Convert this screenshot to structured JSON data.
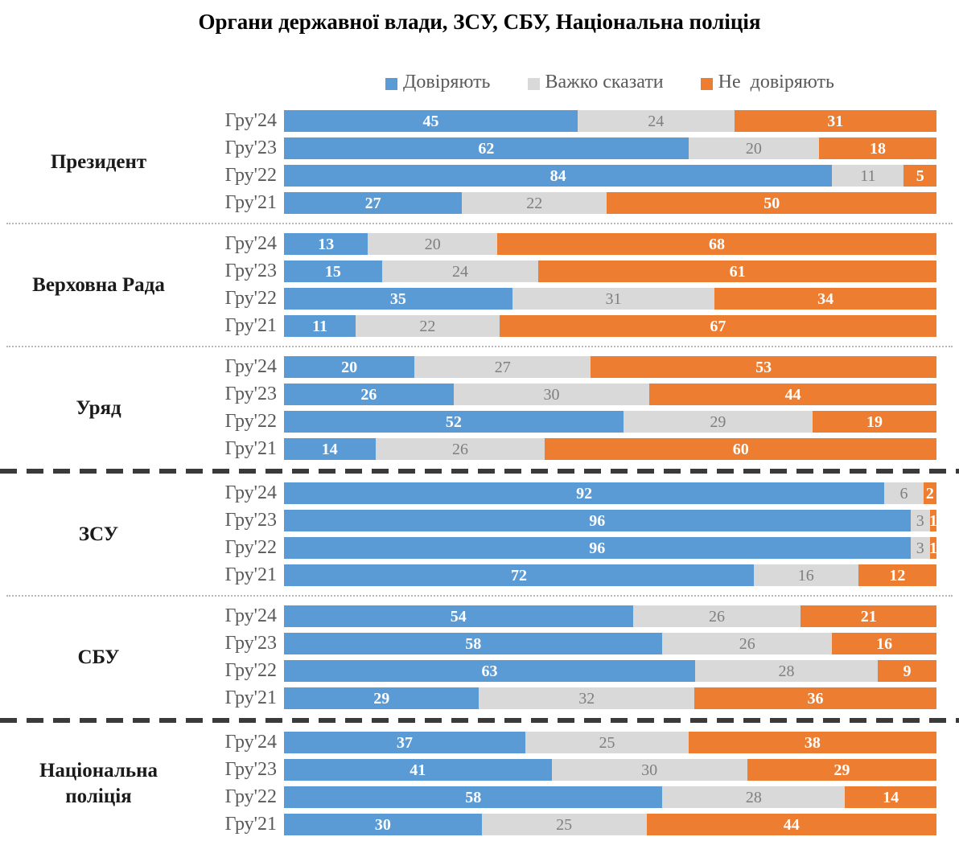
{
  "colors": {
    "trust": "#5B9BD5",
    "hard_to_say": "#D9D9D9",
    "distrust": "#ED7D31",
    "value_label_on_color": "#FFFFFF",
    "value_label_on_gray": "#7F7F7F",
    "axis_text": "#595959",
    "group_label_text": "#1A1A1A"
  },
  "legend": [
    {
      "key": "trust",
      "label": "Довіряють"
    },
    {
      "key": "hard_to_say",
      "label": "Важко сказати"
    },
    {
      "key": "distrust",
      "label": "Не  довіряють"
    }
  ],
  "chart_data": {
    "type": "bar",
    "subtype": "horizontal-100-percent-stacked",
    "title": "Органи державної влади, ЗСУ, СБУ, Національна поліція",
    "unit": "percent",
    "legend_position": "top",
    "series_names": [
      "Довіряють",
      "Важко сказати",
      "Не  довіряють"
    ],
    "groups": [
      {
        "name": "Президент",
        "separator_after": "dotted-thin",
        "rows": [
          {
            "period": "Гру'24",
            "values": {
              "trust": 45,
              "hard_to_say": 24,
              "distrust": 31
            }
          },
          {
            "period": "Гру'23",
            "values": {
              "trust": 62,
              "hard_to_say": 20,
              "distrust": 18
            }
          },
          {
            "period": "Гру'22",
            "values": {
              "trust": 84,
              "hard_to_say": 11,
              "distrust": 5
            }
          },
          {
            "period": "Гру'21",
            "values": {
              "trust": 27,
              "hard_to_say": 22,
              "distrust": 50
            }
          }
        ]
      },
      {
        "name": "Верховна Рада",
        "separator_after": "dotted-thin",
        "rows": [
          {
            "period": "Гру'24",
            "values": {
              "trust": 13,
              "hard_to_say": 20,
              "distrust": 68
            }
          },
          {
            "period": "Гру'23",
            "values": {
              "trust": 15,
              "hard_to_say": 24,
              "distrust": 61
            }
          },
          {
            "period": "Гру'22",
            "values": {
              "trust": 35,
              "hard_to_say": 31,
              "distrust": 34
            }
          },
          {
            "period": "Гру'21",
            "values": {
              "trust": 11,
              "hard_to_say": 22,
              "distrust": 67
            }
          }
        ]
      },
      {
        "name": "Уряд",
        "separator_after": "dashed-thick",
        "rows": [
          {
            "period": "Гру'24",
            "values": {
              "trust": 20,
              "hard_to_say": 27,
              "distrust": 53
            }
          },
          {
            "period": "Гру'23",
            "values": {
              "trust": 26,
              "hard_to_say": 30,
              "distrust": 44
            }
          },
          {
            "period": "Гру'22",
            "values": {
              "trust": 52,
              "hard_to_say": 29,
              "distrust": 19
            }
          },
          {
            "period": "Гру'21",
            "values": {
              "trust": 14,
              "hard_to_say": 26,
              "distrust": 60
            }
          }
        ]
      },
      {
        "name": "ЗСУ",
        "separator_after": "dotted-thin",
        "rows": [
          {
            "period": "Гру'24",
            "values": {
              "trust": 92,
              "hard_to_say": 6,
              "distrust": 2
            }
          },
          {
            "period": "Гру'23",
            "values": {
              "trust": 96,
              "hard_to_say": 3,
              "distrust": 1
            }
          },
          {
            "period": "Гру'22",
            "values": {
              "trust": 96,
              "hard_to_say": 3,
              "distrust": 1
            }
          },
          {
            "period": "Гру'21",
            "values": {
              "trust": 72,
              "hard_to_say": 16,
              "distrust": 12
            }
          }
        ]
      },
      {
        "name": "СБУ",
        "separator_after": "dashed-thick",
        "rows": [
          {
            "period": "Гру'24",
            "values": {
              "trust": 54,
              "hard_to_say": 26,
              "distrust": 21
            }
          },
          {
            "period": "Гру'23",
            "values": {
              "trust": 58,
              "hard_to_say": 26,
              "distrust": 16
            }
          },
          {
            "period": "Гру'22",
            "values": {
              "trust": 63,
              "hard_to_say": 28,
              "distrust": 9
            }
          },
          {
            "period": "Гру'21",
            "values": {
              "trust": 29,
              "hard_to_say": 32,
              "distrust": 36
            }
          }
        ]
      },
      {
        "name": "Національна поліція",
        "separator_after": null,
        "rows": [
          {
            "period": "Гру'24",
            "values": {
              "trust": 37,
              "hard_to_say": 25,
              "distrust": 38
            }
          },
          {
            "period": "Гру'23",
            "values": {
              "trust": 41,
              "hard_to_say": 30,
              "distrust": 29
            }
          },
          {
            "period": "Гру'22",
            "values": {
              "trust": 58,
              "hard_to_say": 28,
              "distrust": 14
            }
          },
          {
            "period": "Гру'21",
            "values": {
              "trust": 30,
              "hard_to_say": 25,
              "distrust": 44
            }
          }
        ]
      }
    ]
  }
}
